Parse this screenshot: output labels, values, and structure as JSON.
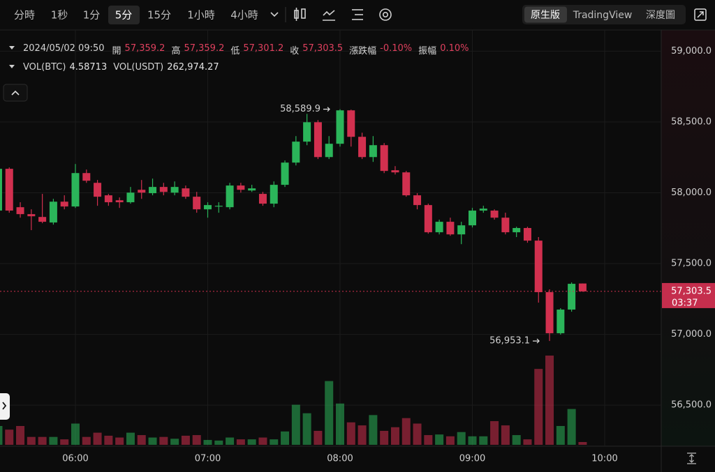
{
  "toolbar": {
    "intervals": [
      "分時",
      "1秒",
      "1分",
      "5分",
      "15分",
      "1小時",
      "4小時"
    ],
    "selected_interval": 3,
    "views": [
      "原生版",
      "TradingView",
      "深度圖"
    ],
    "selected_view": 0
  },
  "legend": {
    "datetime": "2024/05/02 09:50",
    "fields": [
      {
        "label": "開",
        "value": "57,359.2"
      },
      {
        "label": "高",
        "value": "57,359.2"
      },
      {
        "label": "低",
        "value": "57,301.2"
      },
      {
        "label": "收",
        "value": "57,303.5"
      },
      {
        "label": "漲跌幅",
        "value": "-0.10%"
      },
      {
        "label": "振幅",
        "value": "0.10%"
      }
    ],
    "volume": [
      {
        "label": "VOL(BTC)",
        "value": "4.58713"
      },
      {
        "label": "VOL(USDT)",
        "value": "262,974.27"
      }
    ]
  },
  "chart_data": {
    "type": "candlestick",
    "x": [
      "05:25",
      "05:30",
      "05:35",
      "05:40",
      "05:45",
      "05:50",
      "05:55",
      "06:00",
      "06:05",
      "06:10",
      "06:15",
      "06:20",
      "06:25",
      "06:30",
      "06:35",
      "06:40",
      "06:45",
      "06:50",
      "06:55",
      "07:00",
      "07:05",
      "07:10",
      "07:15",
      "07:20",
      "07:25",
      "07:30",
      "07:35",
      "07:40",
      "07:45",
      "07:50",
      "07:55",
      "08:00",
      "08:05",
      "08:10",
      "08:15",
      "08:20",
      "08:25",
      "08:30",
      "08:35",
      "08:40",
      "08:45",
      "08:50",
      "08:55",
      "09:00",
      "09:05",
      "09:10",
      "09:15",
      "09:20",
      "09:25",
      "09:30",
      "09:35",
      "09:40",
      "09:45",
      "09:50"
    ],
    "open": [
      57874,
      58169,
      57898,
      57849,
      57829,
      57790,
      57937,
      57903,
      58139,
      58070,
      57982,
      57947,
      57933,
      58021,
      57997,
      58041,
      58001,
      58031,
      57972,
      57883,
      57903,
      57898,
      58051,
      58016,
      57992,
      57923,
      58056,
      58213,
      58361,
      58498,
      58252,
      58346,
      58582,
      58395,
      58252,
      58336,
      58159,
      58144,
      57982,
      57913,
      57721,
      57795,
      57706,
      57770,
      57874,
      57874,
      57824,
      57721,
      57751,
      57662,
      57298,
      57008,
      57175,
      57359.2
    ],
    "high": [
      58179,
      58179,
      57933,
      57883,
      57992,
      57957,
      57982,
      58203,
      58164,
      58090,
      57992,
      57967,
      58041,
      58090,
      58100,
      58070,
      58080,
      58051,
      58006,
      57933,
      57933,
      58070,
      58070,
      58056,
      58006,
      58080,
      58228,
      58400,
      58557,
      58513,
      58400,
      58589.9,
      58587,
      58424,
      58400,
      58351,
      58188,
      58154,
      57997,
      57923,
      57810,
      57824,
      57795,
      57893,
      57908,
      57883,
      57859,
      57760,
      57760,
      57687,
      57318,
      57185,
      57367,
      57359.2
    ],
    "low": [
      57859,
      57859,
      57824,
      57736,
      57785,
      57775,
      57883,
      57893,
      58070,
      57908,
      57908,
      57893,
      57923,
      57957,
      57982,
      57982,
      57982,
      57957,
      57859,
      57824,
      57859,
      57883,
      58001,
      58006,
      57908,
      57898,
      58041,
      58193,
      58336,
      58238,
      58238,
      58326,
      58326,
      58238,
      58218,
      58139,
      58129,
      57972,
      57883,
      57711,
      57706,
      57696,
      57637,
      57755,
      57859,
      57810,
      57706,
      57687,
      57647,
      57224,
      56953.1,
      56998,
      57160,
      57301.2
    ],
    "close": [
      58169,
      57874,
      57849,
      57834,
      57795,
      57937,
      57903,
      58139,
      58085,
      57972,
      57933,
      57933,
      58001,
      58001,
      58041,
      58006,
      58041,
      57972,
      57883,
      57913,
      57908,
      58051,
      58021,
      58031,
      57923,
      58056,
      58213,
      58361,
      58498,
      58252,
      58346,
      58582,
      58395,
      58252,
      58336,
      58154,
      58144,
      57982,
      57913,
      57721,
      57795,
      57706,
      57770,
      57874,
      57888,
      57824,
      57721,
      57751,
      57662,
      57298,
      57008,
      57175,
      57357,
      57303.5
    ],
    "volume": [
      31,
      25,
      31,
      13,
      13,
      13,
      9,
      35,
      13,
      20,
      15,
      12,
      20,
      16,
      12,
      13,
      10,
      15,
      16,
      8,
      7,
      12,
      9,
      9,
      12,
      9,
      22,
      66,
      52,
      23,
      105,
      68,
      37,
      32,
      49,
      23,
      29,
      44,
      35,
      16,
      17,
      14,
      21,
      14,
      14,
      39,
      32,
      16,
      9,
      125,
      147,
      31,
      59,
      4.58713
    ],
    "up_color": "#2bb55a",
    "down_color": "#d2304f",
    "ylim": [
      56220,
      59115
    ],
    "yticks": [
      {
        "value": 56500,
        "label": "56,500.0"
      },
      {
        "value": 57000,
        "label": "57,000.0"
      },
      {
        "value": 57500,
        "label": "57,500.0"
      },
      {
        "value": 58000,
        "label": "58,000.0"
      },
      {
        "value": 58500,
        "label": "58,500.0"
      },
      {
        "value": 59000,
        "label": "59,000.0"
      }
    ],
    "xticks": [
      "06:00",
      "07:00",
      "08:00",
      "09:00",
      "10:00"
    ],
    "grid": true,
    "annotations": [
      {
        "text": "58,589.9",
        "at": "high",
        "index": 31
      },
      {
        "text": "56,953.1",
        "at": "low",
        "index": 50
      }
    ],
    "last_price": {
      "label": "57,303.5",
      "countdown": "03:37"
    }
  }
}
